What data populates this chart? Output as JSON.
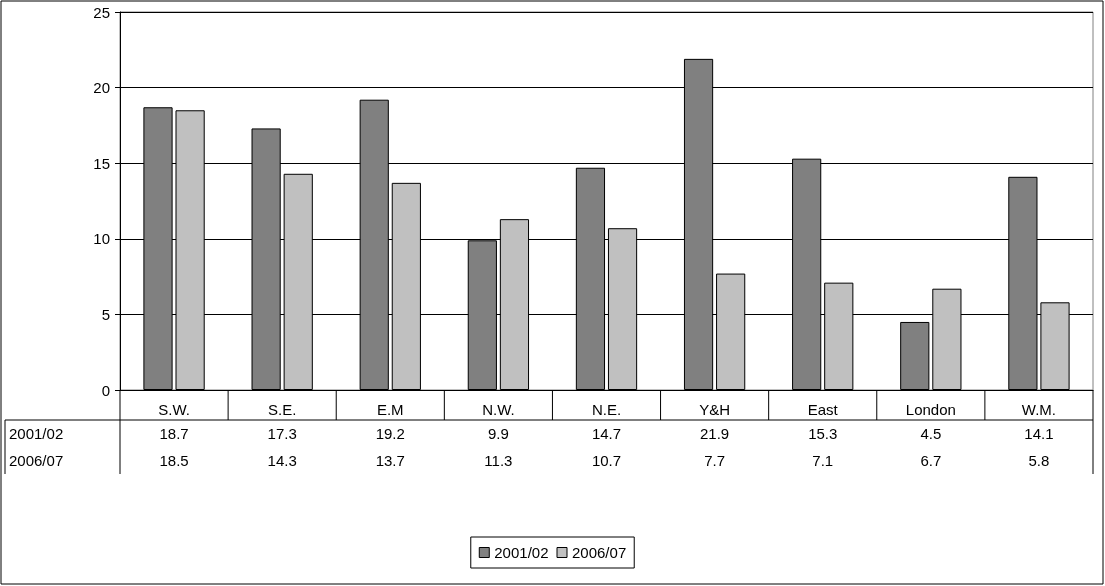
{
  "chart_data": {
    "type": "bar",
    "categories": [
      "S.W.",
      "S.E.",
      "E.M",
      "N.W.",
      "N.E.",
      "Y&H",
      "East",
      "London",
      "W.M."
    ],
    "series": [
      {
        "name": "2001/02",
        "color": "#808080",
        "values": [
          18.7,
          17.3,
          19.2,
          9.9,
          14.7,
          21.9,
          15.3,
          4.5,
          14.1
        ]
      },
      {
        "name": "2006/07",
        "color": "#c0c0c0",
        "values": [
          18.5,
          14.3,
          13.7,
          11.3,
          10.7,
          7.7,
          7.1,
          6.7,
          5.8
        ]
      }
    ],
    "ylim": [
      0,
      25
    ],
    "yticks": [
      0,
      5,
      10,
      15,
      20,
      25
    ],
    "grid": "y",
    "legend": "bottom",
    "data_labels": true
  }
}
